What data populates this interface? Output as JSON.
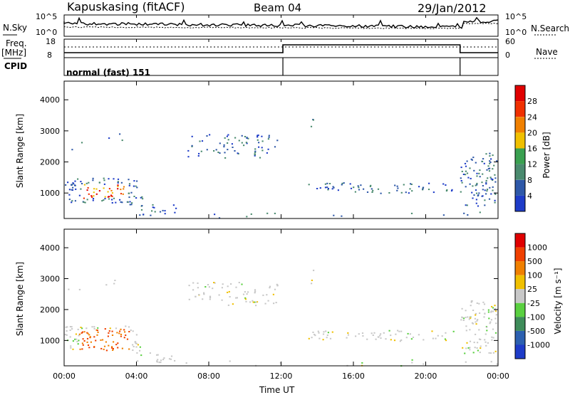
{
  "header": {
    "station": "Kapuskasing (fitACF)",
    "beam": "Beam 04",
    "date": "29/Jan/2012"
  },
  "left_labels": {
    "nsky": "N.Sky",
    "freq": "Freq.",
    "mhz": "[MHz]",
    "cpid": "CPID"
  },
  "right_labels": {
    "nsearch": "N.Search",
    "nave": "Nave"
  },
  "noise_axis": {
    "top": "10^5",
    "bottom": "10^0"
  },
  "freq_axis": {
    "top": "18",
    "bottom": "8"
  },
  "nave_axis": {
    "top": "60",
    "bottom": "0"
  },
  "cpid_text": "normal (fast) 151",
  "xaxis": {
    "label": "Time UT",
    "ticks": [
      "00:00",
      "04:00",
      "08:00",
      "12:00",
      "16:00",
      "20:00",
      "00:00"
    ]
  },
  "chart_data": [
    {
      "type": "heatmap",
      "ylabel": "Slant Range [km]",
      "ylim": [
        180,
        4600
      ],
      "yticks": [
        "1000",
        "2000",
        "3000",
        "4000"
      ],
      "colorbar": {
        "label": "Power [dB]",
        "ticks": [
          "4",
          "8",
          "12",
          "16",
          "20",
          "24",
          "28"
        ],
        "colors": [
          "#1e3cc8",
          "#2e58a8",
          "#4a8a6e",
          "#3aa050",
          "#f0c000",
          "#f08000",
          "#f03000",
          "#e00000"
        ]
      }
    },
    {
      "type": "heatmap",
      "ylabel": "Slant Range [km]",
      "ylim": [
        180,
        4600
      ],
      "yticks": [
        "1000",
        "2000",
        "3000",
        "4000"
      ],
      "colorbar": {
        "label": "Velocity [m s⁻¹]",
        "ticks": [
          "1000",
          "500",
          "100",
          "25",
          "-25",
          "-100",
          "-500",
          "-1000"
        ],
        "colors": [
          "#1e3cc8",
          "#2c60b0",
          "#3e8c5a",
          "#5ad040",
          "#c8c8c8",
          "#f0c000",
          "#f08000",
          "#f04000",
          "#e00000"
        ]
      }
    }
  ]
}
